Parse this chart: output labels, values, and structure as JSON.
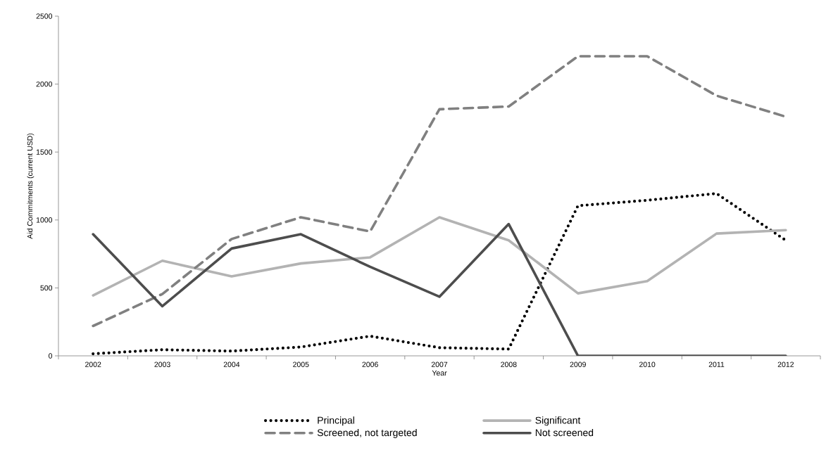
{
  "chart_data": {
    "type": "line",
    "xlabel": "Year",
    "ylabel": "Aid Commitments (current USD)",
    "categories": [
      "2002",
      "2003",
      "2004",
      "2005",
      "2006",
      "2007",
      "2008",
      "2009",
      "2010",
      "2011",
      "2012"
    ],
    "ylim": [
      0,
      2500
    ],
    "yticks": [
      0,
      500,
      1000,
      1500,
      2000,
      2500
    ],
    "grid": false,
    "legend": "bottom",
    "marker": "none",
    "series": [
      {
        "name": "Principal",
        "color": "#000000",
        "line_style": "dotted",
        "values": [
          15,
          45,
          35,
          65,
          145,
          60,
          50,
          1105,
          1145,
          1195,
          850
        ]
      },
      {
        "name": "Significant",
        "color": "#b3b3b3",
        "line_style": "solid",
        "values": [
          445,
          700,
          585,
          680,
          725,
          1020,
          850,
          460,
          550,
          900,
          925
        ]
      },
      {
        "name": "Screened, not targeted",
        "color": "#808080",
        "line_style": "dashed",
        "values": [
          220,
          455,
          860,
          1020,
          915,
          1815,
          1835,
          2205,
          2205,
          1915,
          1760
        ]
      },
      {
        "name": "Not screened",
        "color": "#4d4d4d",
        "line_style": "solid",
        "values": [
          895,
          365,
          790,
          895,
          655,
          435,
          970,
          0,
          0,
          0,
          0
        ]
      }
    ]
  }
}
